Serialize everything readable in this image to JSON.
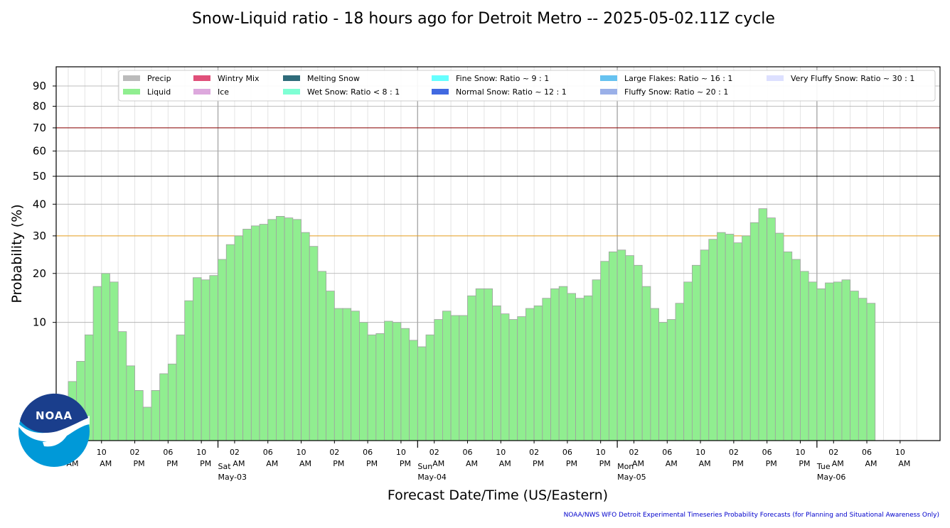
{
  "chart_data": {
    "type": "bar",
    "title": "Snow-Liquid ratio - 18 hours ago for Detroit Metro -- 2025-05-02.11Z cycle",
    "xlabel": "Forecast Date/Time (US/Eastern)",
    "ylabel": "Probability (%)",
    "yscale": "sqrt",
    "ylim": [
      0,
      100
    ],
    "yticks": [
      10,
      20,
      30,
      40,
      50,
      60,
      70,
      80,
      90
    ],
    "reference_lines": [
      {
        "value": 30,
        "color": "#e8a020"
      },
      {
        "value": 50,
        "color": "#000000"
      },
      {
        "value": 70,
        "color": "#8b0000"
      }
    ],
    "grid": true,
    "legend_position": "top",
    "x_start_hour": 6,
    "x_hours": 96,
    "x_tick_labels": [
      {
        "hour": 6,
        "time": "06",
        "ampm": "AM"
      },
      {
        "hour": 10,
        "time": "10",
        "ampm": "AM"
      },
      {
        "hour": 14,
        "time": "02",
        "ampm": "PM"
      },
      {
        "hour": 18,
        "time": "06",
        "ampm": "PM"
      },
      {
        "hour": 22,
        "time": "10",
        "ampm": "PM"
      },
      {
        "hour": 26,
        "time": "02",
        "ampm": "AM"
      },
      {
        "hour": 30,
        "time": "06",
        "ampm": "AM"
      },
      {
        "hour": 34,
        "time": "10",
        "ampm": "AM"
      },
      {
        "hour": 38,
        "time": "02",
        "ampm": "PM"
      },
      {
        "hour": 42,
        "time": "06",
        "ampm": "PM"
      },
      {
        "hour": 46,
        "time": "10",
        "ampm": "PM"
      },
      {
        "hour": 50,
        "time": "02",
        "ampm": "AM"
      },
      {
        "hour": 54,
        "time": "06",
        "ampm": "AM"
      },
      {
        "hour": 58,
        "time": "10",
        "ampm": "AM"
      },
      {
        "hour": 62,
        "time": "02",
        "ampm": "PM"
      },
      {
        "hour": 66,
        "time": "06",
        "ampm": "PM"
      },
      {
        "hour": 70,
        "time": "10",
        "ampm": "PM"
      },
      {
        "hour": 74,
        "time": "02",
        "ampm": "AM"
      },
      {
        "hour": 78,
        "time": "06",
        "ampm": "AM"
      },
      {
        "hour": 82,
        "time": "10",
        "ampm": "AM"
      },
      {
        "hour": 86,
        "time": "02",
        "ampm": "PM"
      },
      {
        "hour": 90,
        "time": "06",
        "ampm": "PM"
      },
      {
        "hour": 94,
        "time": "10",
        "ampm": "PM"
      },
      {
        "hour": 98,
        "time": "02",
        "ampm": "AM"
      },
      {
        "hour": 102,
        "time": "06",
        "ampm": "AM"
      },
      {
        "hour": 106,
        "time": "10",
        "ampm": "AM"
      }
    ],
    "day_labels": [
      {
        "hour": 24,
        "day": "Sat",
        "date": "May-03"
      },
      {
        "hour": 48,
        "day": "Sun",
        "date": "May-04"
      },
      {
        "hour": 72,
        "day": "Mon",
        "date": "May-05"
      },
      {
        "hour": 96,
        "day": "Tue",
        "date": "May-06"
      }
    ],
    "legend": [
      {
        "label": "Precip",
        "color": "#bbbbbb"
      },
      {
        "label": "Liquid",
        "color": "#90ee90"
      },
      {
        "label": "Wintry Mix",
        "color": "#e0507a"
      },
      {
        "label": "Ice",
        "color": "#dda8dd"
      },
      {
        "label": "Melting Snow",
        "color": "#2f6b7a"
      },
      {
        "label": "Wet Snow: Ratio < 8 : 1",
        "color": "#7fffd4"
      },
      {
        "label": "Fine Snow: Ratio ~ 9 : 1",
        "color": "#66ffff"
      },
      {
        "label": "Normal Snow: Ratio ~ 12 : 1",
        "color": "#4169e1"
      },
      {
        "label": "Large Flakes: Ratio ~ 16 : 1",
        "color": "#66c2f0"
      },
      {
        "label": "Fluffy Snow: Ratio ~ 20 : 1",
        "color": "#9ab0e8"
      },
      {
        "label": "Very Fluffy Snow: Ratio ~ 30 : 1",
        "color": "#dde0ff"
      }
    ],
    "series": [
      {
        "name": "Liquid",
        "color": "#90ee90",
        "start_hour": 6.5,
        "values": [
          2.5,
          4.5,
          8,
          17,
          20,
          18,
          8.5,
          4,
          1.8,
          0.8,
          1.8,
          3.2,
          4.2,
          8,
          14,
          19,
          18.5,
          19.5,
          23.5,
          27.5,
          30,
          32,
          33,
          33.5,
          35,
          36,
          35.5,
          35,
          31,
          27,
          20.5,
          16,
          12.5,
          12.5,
          12,
          10,
          8,
          8.2,
          10.2,
          10,
          9,
          7.2,
          6.3,
          8,
          10.5,
          12,
          11.2,
          11.2,
          15,
          16.5,
          16.5,
          13,
          11.5,
          10.5,
          11,
          12.5,
          13,
          14.5,
          16.5,
          17,
          15.5,
          14.5,
          15,
          18.5,
          23,
          25.5,
          26,
          24.5,
          22,
          17,
          12.5,
          10,
          10.5,
          13.5,
          18,
          22,
          26,
          29,
          31,
          30.5,
          28,
          30,
          34,
          38.5,
          35.5,
          30.8,
          25.5,
          23.5,
          20.5,
          18,
          16.5,
          17.8,
          18,
          18.5,
          16,
          14.5,
          13.5
        ]
      }
    ]
  },
  "footer": "NOAA/NWS WFO Detroit Experimental Timeseries Probability Forecasts (for Planning and Situational Awareness Only)",
  "logo_text": "NOAA"
}
